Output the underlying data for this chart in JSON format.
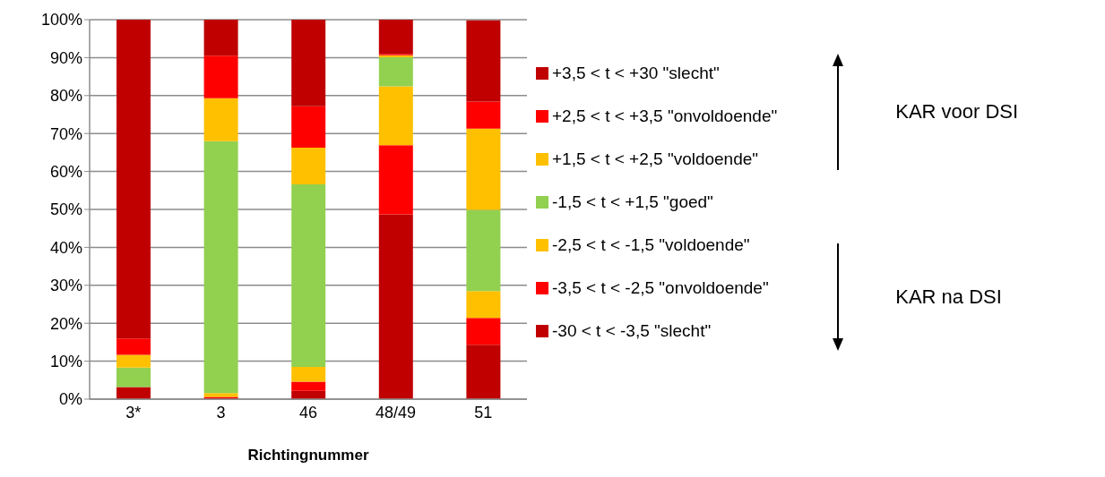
{
  "chart_data": {
    "type": "bar",
    "stacked": true,
    "xlabel": "Richtingnummer",
    "categories": [
      "3*",
      "3",
      "46",
      "48/49",
      "51"
    ],
    "ylim": [
      0,
      100
    ],
    "yticks": [
      {
        "value": 0,
        "label": "0%"
      },
      {
        "value": 10,
        "label": "10%"
      },
      {
        "value": 20,
        "label": "20%"
      },
      {
        "value": 30,
        "label": "30%"
      },
      {
        "value": 40,
        "label": "40%"
      },
      {
        "value": 50,
        "label": "50%"
      },
      {
        "value": 60,
        "label": "60%"
      },
      {
        "value": 70,
        "label": "70%"
      },
      {
        "value": 80,
        "label": "80%"
      },
      {
        "value": 90,
        "label": "90%"
      },
      {
        "value": 100,
        "label": "100%"
      }
    ],
    "grid": "y",
    "legend": "right",
    "series": [
      {
        "name": "-30 < t < -3,5 \"slecht\"",
        "color": "#c00000",
        "values": [
          3.2,
          0,
          2.2,
          48.7,
          14.3
        ]
      },
      {
        "name": "-3,5 < t < -2,5 \"onvoldoende\"",
        "color": "#ff0000",
        "values": [
          0,
          0.6,
          2.4,
          18.2,
          7.1
        ]
      },
      {
        "name": "-2,5 < t < -1,5 \"voldoende\"",
        "color": "#ffc000",
        "values": [
          0,
          1.0,
          3.9,
          15.5,
          7.1
        ]
      },
      {
        "name": "-1,5 < t < +1,5 \"goed\"",
        "color": "#92d050",
        "values": [
          5.1,
          66.4,
          48.1,
          7.7,
          21.4
        ]
      },
      {
        "name": "+1,5 < t < +2,5 \"voldoende\"",
        "color": "#ffc000",
        "values": [
          3.4,
          11.3,
          9.7,
          0.5,
          21.4
        ]
      },
      {
        "name": "+2,5 < t < +3,5 \"onvoldoende\"",
        "color": "#ff0000",
        "values": [
          4.3,
          11.2,
          10.9,
          0.4,
          7.1
        ]
      },
      {
        "name": "+3,5 < t < +30 \"slecht\"",
        "color": "#c00000",
        "values": [
          84.0,
          9.5,
          22.8,
          9.0,
          21.4
        ]
      }
    ],
    "annotations": [
      "KAR voor DSI",
      "KAR na DSI"
    ]
  }
}
